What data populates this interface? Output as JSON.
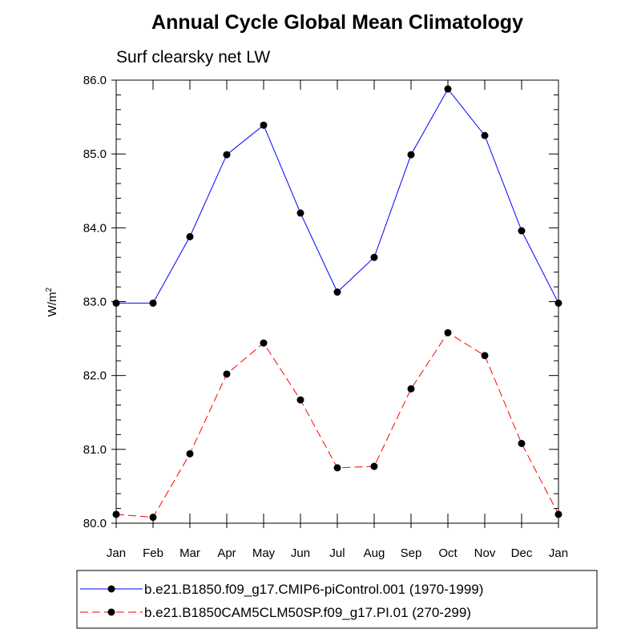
{
  "chart_data": {
    "type": "line",
    "title": "Annual Cycle Global Mean Climatology",
    "subtitle": "Surf clearsky net LW",
    "ylabel_base": "W/m",
    "ylabel_sup": "2",
    "xlabel": "",
    "categories": [
      "Jan",
      "Feb",
      "Mar",
      "Apr",
      "May",
      "Jun",
      "Jul",
      "Aug",
      "Sep",
      "Oct",
      "Nov",
      "Dec",
      "Jan"
    ],
    "ylim": [
      80.0,
      86.0
    ],
    "yticks": [
      "80.0",
      "81.0",
      "82.0",
      "83.0",
      "84.0",
      "85.0",
      "86.0"
    ],
    "series": [
      {
        "name": "b.e21.B1850.f09_g17.CMIP6-piControl.001 (1970-1999)",
        "color": "#0000ff",
        "line_style": "solid",
        "values": [
          82.98,
          82.98,
          83.88,
          84.99,
          85.39,
          84.2,
          83.13,
          83.6,
          84.99,
          85.88,
          85.25,
          83.96,
          82.98
        ]
      },
      {
        "name": "b.e21.B1850CAM5CLM50SP.f09_g17.PI.01 (270-299)",
        "color": "#ff0000",
        "line_style": "dashed",
        "values": [
          80.12,
          80.08,
          80.94,
          82.02,
          82.44,
          81.67,
          80.75,
          80.77,
          81.82,
          82.58,
          82.27,
          81.08,
          80.12
        ]
      }
    ],
    "grid": false,
    "legend_position": "bottom"
  }
}
